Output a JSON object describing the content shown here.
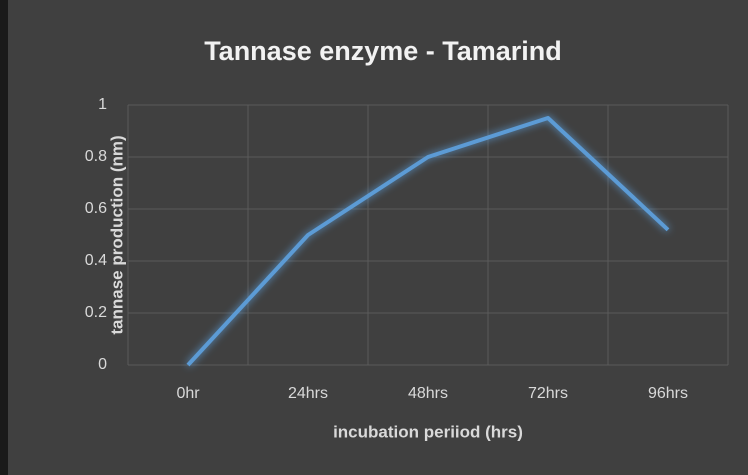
{
  "chart_data": {
    "type": "line",
    "title": "Tannase enzyme - Tamarind",
    "x_label": "incubation periiod (hrs)",
    "y_label": "tannase production (nm)",
    "categories": [
      "0hr",
      "24hrs",
      "48hrs",
      "72hrs",
      "96hrs"
    ],
    "series": [
      {
        "name": "Tannase",
        "color": "#5b9bd5",
        "values": [
          0,
          0.5,
          0.8,
          0.95,
          0.52
        ]
      }
    ],
    "ylim": [
      0,
      1
    ],
    "yticks": [
      0,
      0.2,
      0.4,
      0.6,
      0.8,
      1
    ],
    "grid": true
  }
}
